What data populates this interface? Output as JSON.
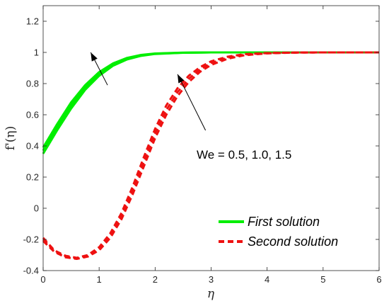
{
  "chart_data": {
    "type": "line",
    "xlabel": "η",
    "ylabel": "f'(η)",
    "xlim": [
      0,
      6
    ],
    "ylim": [
      -0.4,
      1.3
    ],
    "x_ticks": [
      "0",
      "1",
      "2",
      "3",
      "4",
      "5",
      "6"
    ],
    "y_ticks": [
      "-0.4",
      "-0.2",
      "0",
      "0.2",
      "0.4",
      "0.6",
      "0.8",
      "1",
      "1.2"
    ],
    "grid": false,
    "legend_position": "bottom-right",
    "annotation": "We = 0.5, 1.0, 1.5",
    "series": [
      {
        "name": "First solution",
        "color": "#00ee00",
        "style": "solid",
        "curves": [
          [
            [
              0,
              0.35
            ],
            [
              0.1,
              0.41
            ],
            [
              0.25,
              0.5
            ],
            [
              0.5,
              0.64
            ],
            [
              0.75,
              0.76
            ],
            [
              1.0,
              0.85
            ],
            [
              1.25,
              0.915
            ],
            [
              1.5,
              0.955
            ],
            [
              1.75,
              0.978
            ],
            [
              2.0,
              0.99
            ],
            [
              2.5,
              0.998
            ],
            [
              3.0,
              1.0
            ],
            [
              4.0,
              1.0
            ],
            [
              5.0,
              1.0
            ],
            [
              6.0,
              1.0
            ]
          ],
          [
            [
              0,
              0.37
            ],
            [
              0.1,
              0.43
            ],
            [
              0.25,
              0.52
            ],
            [
              0.5,
              0.66
            ],
            [
              0.75,
              0.775
            ],
            [
              1.0,
              0.862
            ],
            [
              1.25,
              0.922
            ],
            [
              1.5,
              0.96
            ],
            [
              1.75,
              0.981
            ],
            [
              2.0,
              0.992
            ],
            [
              2.5,
              0.998
            ],
            [
              3.0,
              1.0
            ],
            [
              4.0,
              1.0
            ],
            [
              5.0,
              1.0
            ],
            [
              6.0,
              1.0
            ]
          ],
          [
            [
              0,
              0.39
            ],
            [
              0.1,
              0.45
            ],
            [
              0.25,
              0.54
            ],
            [
              0.5,
              0.68
            ],
            [
              0.75,
              0.79
            ],
            [
              1.0,
              0.874
            ],
            [
              1.25,
              0.93
            ],
            [
              1.5,
              0.965
            ],
            [
              1.75,
              0.984
            ],
            [
              2.0,
              0.993
            ],
            [
              2.5,
              0.999
            ],
            [
              3.0,
              1.0
            ],
            [
              4.0,
              1.0
            ],
            [
              5.0,
              1.0
            ],
            [
              6.0,
              1.0
            ]
          ]
        ]
      },
      {
        "name": "Second solution",
        "color": "#ee1111",
        "style": "dashed",
        "curves": [
          [
            [
              0,
              -0.21
            ],
            [
              0.2,
              -0.28
            ],
            [
              0.4,
              -0.315
            ],
            [
              0.6,
              -0.325
            ],
            [
              0.8,
              -0.31
            ],
            [
              1.0,
              -0.27
            ],
            [
              1.2,
              -0.19
            ],
            [
              1.4,
              -0.07
            ],
            [
              1.6,
              0.09
            ],
            [
              1.8,
              0.27
            ],
            [
              2.0,
              0.45
            ],
            [
              2.2,
              0.6
            ],
            [
              2.4,
              0.72
            ],
            [
              2.6,
              0.81
            ],
            [
              2.8,
              0.875
            ],
            [
              3.0,
              0.92
            ],
            [
              3.3,
              0.96
            ],
            [
              3.6,
              0.982
            ],
            [
              4.0,
              0.994
            ],
            [
              4.5,
              0.999
            ],
            [
              5.0,
              1.0
            ],
            [
              6.0,
              1.0
            ]
          ],
          [
            [
              0,
              -0.2
            ],
            [
              0.2,
              -0.275
            ],
            [
              0.4,
              -0.31
            ],
            [
              0.6,
              -0.322
            ],
            [
              0.8,
              -0.305
            ],
            [
              1.0,
              -0.26
            ],
            [
              1.2,
              -0.175
            ],
            [
              1.4,
              -0.05
            ],
            [
              1.6,
              0.115
            ],
            [
              1.8,
              0.3
            ],
            [
              2.0,
              0.48
            ],
            [
              2.2,
              0.63
            ],
            [
              2.4,
              0.745
            ],
            [
              2.6,
              0.83
            ],
            [
              2.8,
              0.89
            ],
            [
              3.0,
              0.932
            ],
            [
              3.3,
              0.967
            ],
            [
              3.6,
              0.986
            ],
            [
              4.0,
              0.995
            ],
            [
              4.5,
              0.999
            ],
            [
              5.0,
              1.0
            ],
            [
              6.0,
              1.0
            ]
          ],
          [
            [
              0,
              -0.19
            ],
            [
              0.2,
              -0.27
            ],
            [
              0.4,
              -0.305
            ],
            [
              0.6,
              -0.318
            ],
            [
              0.8,
              -0.3
            ],
            [
              1.0,
              -0.25
            ],
            [
              1.2,
              -0.16
            ],
            [
              1.4,
              -0.03
            ],
            [
              1.6,
              0.14
            ],
            [
              1.8,
              0.33
            ],
            [
              2.0,
              0.51
            ],
            [
              2.2,
              0.66
            ],
            [
              2.4,
              0.77
            ],
            [
              2.6,
              0.85
            ],
            [
              2.8,
              0.905
            ],
            [
              3.0,
              0.943
            ],
            [
              3.3,
              0.973
            ],
            [
              3.6,
              0.989
            ],
            [
              4.0,
              0.996
            ],
            [
              4.5,
              0.999
            ],
            [
              5.0,
              1.0
            ],
            [
              6.0,
              1.0
            ]
          ]
        ]
      }
    ],
    "arrows": [
      {
        "from": [
          1.15,
          0.79
        ],
        "to": [
          0.85,
          1.0
        ]
      },
      {
        "from": [
          2.9,
          0.5
        ],
        "to": [
          2.4,
          0.86
        ]
      }
    ]
  }
}
